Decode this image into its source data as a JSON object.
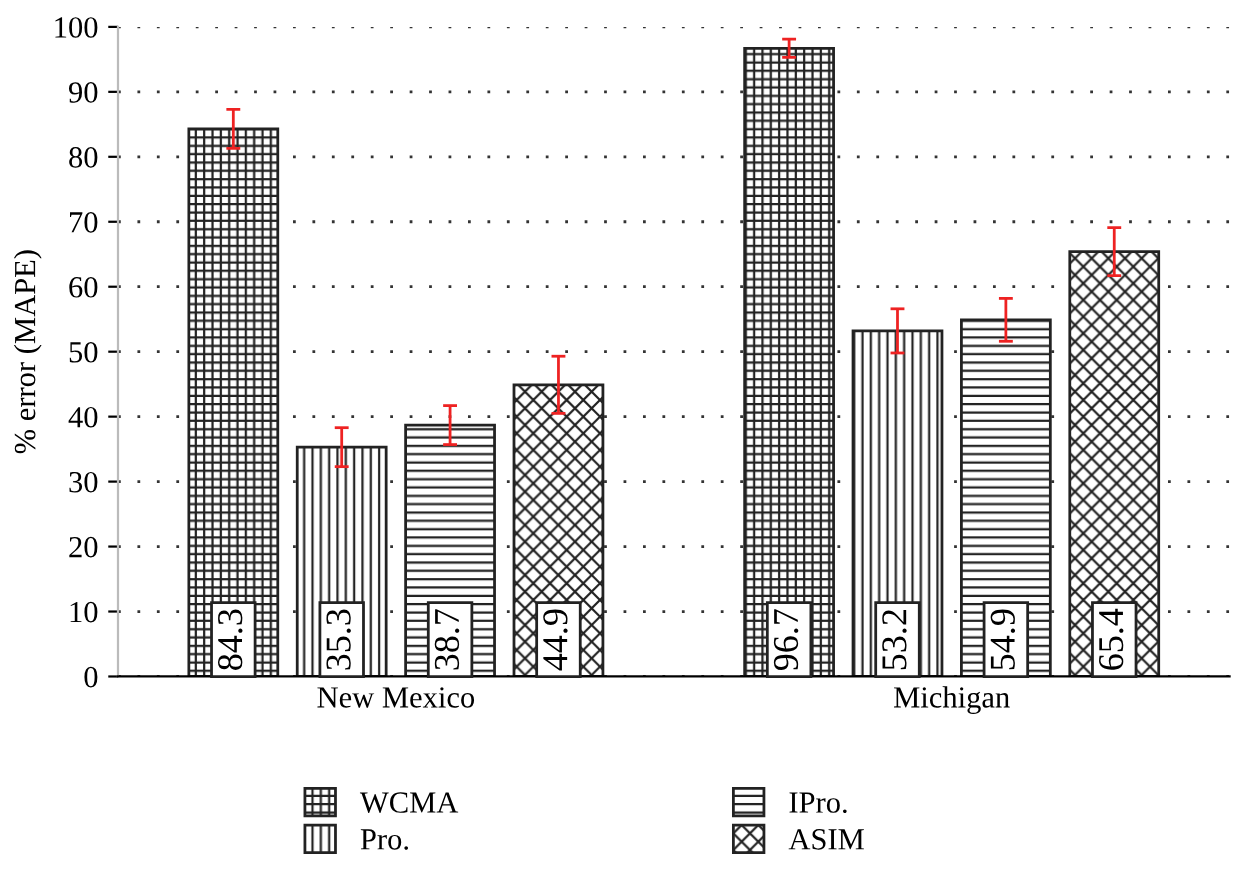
{
  "chart_data": {
    "type": "bar",
    "ylabel": "% error (MAPE)",
    "categories": [
      "New Mexico",
      "Michigan"
    ],
    "series": [
      {
        "name": "WCMA",
        "color": "#222222",
        "values": [
          84.3,
          96.7
        ],
        "errors": [
          3,
          1.4
        ]
      },
      {
        "name": "Pro.",
        "color": "#222222",
        "values": [
          35.3,
          53.2
        ],
        "errors": [
          3,
          3.4
        ]
      },
      {
        "name": "IPro.",
        "color": "#222222",
        "values": [
          38.7,
          54.9
        ],
        "errors": [
          3,
          3.3
        ]
      },
      {
        "name": "ASIM",
        "color": "#222222",
        "values": [
          44.9,
          65.4
        ],
        "errors": [
          4.4,
          3.7
        ]
      }
    ],
    "ylim": [
      0,
      100
    ],
    "yticks": [
      0,
      10,
      20,
      30,
      40,
      50,
      60,
      70,
      80,
      90,
      100
    ],
    "grid": "y",
    "legend": "bottom",
    "data_labels": true
  }
}
